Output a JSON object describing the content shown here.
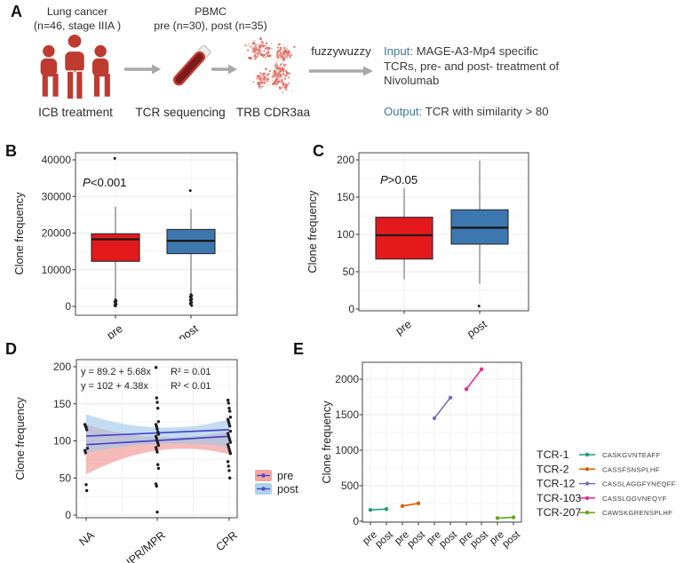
{
  "panel_labels": {
    "A": "A",
    "B": "B",
    "C": "C",
    "D": "D",
    "E": "E"
  },
  "panelA": {
    "col1_line1": "Lung cancer",
    "col1_line2": "(n=46, stage IIIA )",
    "col1_caption": "ICB treatment",
    "col2_line1": "PBMC",
    "col2_line2": "pre (n=30), post (n=35)",
    "col2_caption": "TCR sequencing",
    "col3_caption": "TRB CDR3aa",
    "arrow_label": "fuzzywuzzy",
    "input_label": "Input:",
    "input_text": " MAGE-A3-Mp4 specific TCRs, pre- and post- treatment of Nivolumab",
    "output_label": "Output:",
    "output_text": " TCR with similarity > 80",
    "colors": {
      "icon_red": "#bf3a30",
      "tube_fill": "#7c1b1b",
      "tube_stroke": "#c23a30",
      "blob_dot": "#e06a5e",
      "arrow_gray": "#a8a8a8",
      "accent_blue": "#41799f"
    }
  },
  "chart_data": [
    {
      "panel": "B",
      "type": "box",
      "p_label": "P<0.001",
      "ylabel": "Clone frequency",
      "yticks": [
        0,
        10000,
        20000,
        30000,
        40000
      ],
      "ylim": [
        -2400,
        41900
      ],
      "categories": [
        "pre",
        "post"
      ],
      "grid": true,
      "legend_position": "none",
      "boxes": [
        {
          "name": "pre",
          "color": "#e3191c",
          "q1": 12300,
          "median": 18300,
          "q3": 19800,
          "whisker_low": 2000,
          "whisker_high": 27200,
          "outliers": [
            40400,
            1800,
            1500,
            1200,
            900,
            600,
            300,
            100
          ]
        },
        {
          "name": "post",
          "color": "#3c77b0",
          "q1": 14400,
          "median": 17900,
          "q3": 21000,
          "whisker_low": 3400,
          "whisker_high": 26600,
          "outliers": [
            31600,
            3200,
            2900,
            2600,
            2300,
            2000,
            1700,
            1400,
            1100,
            800,
            500,
            200
          ]
        }
      ]
    },
    {
      "panel": "C",
      "type": "box",
      "p_label": "P>0.05",
      "ylabel": "Clone frequency",
      "yticks": [
        0,
        50,
        100,
        150,
        200
      ],
      "ylim": [
        -12,
        210
      ],
      "categories": [
        "pre",
        "post"
      ],
      "grid": true,
      "legend_position": "none",
      "boxes": [
        {
          "name": "pre",
          "color": "#e3191c",
          "q1": 67,
          "median": 99,
          "q3": 123,
          "whisker_low": 40,
          "whisker_high": 162,
          "outliers": []
        },
        {
          "name": "post",
          "color": "#3c77b0",
          "q1": 87,
          "median": 109,
          "q3": 133,
          "whisker_low": 34,
          "whisker_high": 199,
          "outliers": [
            4
          ]
        }
      ]
    },
    {
      "panel": "D",
      "type": "scatter",
      "ylabel": "Clone frequency",
      "yticks": [
        0,
        50,
        100,
        150,
        200
      ],
      "ylim": [
        -4,
        210
      ],
      "categories": [
        "NA",
        "IPR/MPR",
        "CPR"
      ],
      "grid": true,
      "legend_position": "right",
      "annotations": [
        {
          "equation": "y = 89.2 + 5.68x",
          "r2": "R² = 0.01"
        },
        {
          "equation": "y = 102 + 4.38x",
          "r2": "R² < 0.01"
        }
      ],
      "regressions": [
        {
          "name": "pre",
          "line_color": "#4546c9",
          "band_color": "#f0908d",
          "intercept": 89.2,
          "slope": 5.68,
          "line_y": [
            94.9,
            100.6,
            106.2
          ],
          "band_top": [
            122,
            105,
            113
          ],
          "band_bottom": [
            55,
            87,
            82
          ]
        },
        {
          "name": "post",
          "line_color": "#4546c9",
          "band_color": "#9ec7e8",
          "intercept": 102,
          "slope": 4.38,
          "line_y": [
            106.4,
            110.8,
            115.1
          ],
          "band_top": [
            136,
            118,
            129
          ],
          "band_bottom": [
            84,
            96,
            92
          ]
        }
      ],
      "points": {
        "NA": [
          122,
          120,
          118,
          115,
          90,
          87,
          84,
          41,
          33
        ],
        "IPR/MPR": [
          199,
          158,
          152,
          144,
          126,
          122,
          119,
          116,
          112,
          109,
          106,
          103,
          100,
          97,
          94,
          91,
          88,
          85,
          68,
          63,
          42,
          39,
          4
        ],
        "CPR": [
          155,
          151,
          144,
          140,
          132,
          129,
          126,
          123,
          120,
          113,
          110,
          107,
          104,
          101,
          98,
          95,
          92,
          89,
          86,
          83,
          72,
          66,
          60,
          50
        ]
      },
      "legend": [
        "pre",
        "post"
      ]
    },
    {
      "panel": "E",
      "type": "line",
      "ylabel": "Clone frequency",
      "yticks": [
        0,
        500,
        1000,
        1500,
        2000
      ],
      "ylim": [
        -25,
        2240
      ],
      "grid": true,
      "legend_position": "right",
      "x_labels": [
        "pre",
        "post",
        "pre",
        "post",
        "pre",
        "post",
        "pre",
        "post",
        "pre",
        "post"
      ],
      "series": [
        {
          "name": "TCR-1",
          "sequence": "CASKGVNTEAFF",
          "color": "#1b9e77",
          "pre": 160,
          "post": 172
        },
        {
          "name": "TCR-2",
          "sequence": "CASSFSNSPLHF",
          "color": "#d95f02",
          "pre": 215,
          "post": 252
        },
        {
          "name": "TCR-12",
          "sequence": "CASSLAGGFYNEQFF",
          "color": "#7570b3",
          "pre": 1450,
          "post": 1740
        },
        {
          "name": "TCR-103",
          "sequence": "CASSLGGVNEQYF",
          "color": "#e7298a",
          "pre": 1860,
          "post": 2140
        },
        {
          "name": "TCR-207",
          "sequence": "CAWSKGRENSPLHF",
          "color": "#66a61e",
          "pre": 45,
          "post": 55
        }
      ]
    }
  ]
}
